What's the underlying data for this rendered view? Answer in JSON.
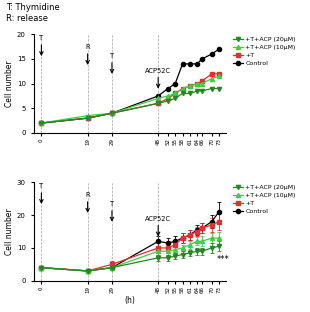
{
  "chart_data": [
    {
      "type": "line",
      "title": "T: Thymidine\nR: release",
      "x": [
        0,
        19,
        29,
        48,
        52,
        55,
        58,
        61,
        64,
        66,
        70,
        73
      ],
      "xlim": [
        -3,
        76
      ],
      "xticks": [
        0,
        19,
        29,
        48,
        52,
        55,
        58,
        61,
        64,
        66,
        70,
        73
      ],
      "ylim": [
        0,
        20
      ],
      "yticks": [
        0,
        5,
        10,
        15,
        20
      ],
      "ylabel": "Cell number",
      "legend": "upper left",
      "vlines": [
        0,
        19,
        29,
        48
      ],
      "annotations": [
        {
          "text": "T",
          "x": 0,
          "arrow": true
        },
        {
          "text": "R",
          "x": 19,
          "arrow": true
        },
        {
          "text": "T",
          "x": 29,
          "arrow": true
        },
        {
          "text": "ACP52C",
          "x": 48,
          "arrow": true
        }
      ],
      "series": [
        {
          "name": "+T+ACP (20μM)",
          "color": "#228822",
          "marker": "triangle_down",
          "values": [
            2,
            3,
            4,
            6,
            6.5,
            7,
            8,
            8,
            8.5,
            8.5,
            9,
            9
          ]
        },
        {
          "name": "+T+ACP (10μM)",
          "color": "#44cc44",
          "marker": "triangle_up",
          "values": [
            2,
            3.5,
            4,
            7,
            7.5,
            8,
            9,
            9.5,
            10,
            10,
            11,
            11.5
          ]
        },
        {
          "name": "+T",
          "color": "#e03030",
          "marker": "square",
          "values": [
            2,
            3,
            4,
            6,
            7,
            8,
            9,
            9.5,
            10,
            10.5,
            12,
            12
          ]
        },
        {
          "name": "Control",
          "color": "#000000",
          "marker": "circle",
          "values": [
            2,
            3,
            4,
            7.5,
            9,
            10,
            14,
            14,
            14,
            15,
            16,
            17
          ]
        }
      ]
    },
    {
      "type": "line",
      "x": [
        0,
        19,
        29,
        48,
        52,
        55,
        58,
        61,
        64,
        66,
        70,
        73
      ],
      "xlim": [
        -3,
        76
      ],
      "xticks": [
        0,
        19,
        29,
        48,
        52,
        55,
        58,
        61,
        64,
        66,
        70,
        73
      ],
      "ylim": [
        0,
        30
      ],
      "yticks": [
        0,
        10,
        20,
        30
      ],
      "xlabel": "(h)",
      "ylabel": "Cell number",
      "legend": "upper left",
      "vlines": [
        0,
        19,
        29,
        48
      ],
      "annotations": [
        {
          "text": "T",
          "x": 0,
          "arrow": true
        },
        {
          "text": "R",
          "x": 19,
          "arrow": true
        },
        {
          "text": "T",
          "x": 29,
          "arrow": true
        },
        {
          "text": "ACP52C",
          "x": 48,
          "arrow": true
        },
        {
          "text": "***",
          "x": 74.5,
          "arrow": false
        }
      ],
      "series": [
        {
          "name": "+T+ACP (20μM)",
          "color": "#228822",
          "marker": "triangle_down",
          "values": [
            4,
            3,
            4,
            7,
            7,
            7.5,
            8,
            8.5,
            9,
            9,
            10,
            10.5
          ],
          "errors": [
            0.5,
            0.5,
            0.5,
            1,
            1,
            1,
            1,
            1,
            1,
            1,
            1.5,
            1.5
          ]
        },
        {
          "name": "+T+ACP (10μM)",
          "color": "#44cc44",
          "marker": "triangle_up",
          "values": [
            4,
            3,
            4,
            9,
            9,
            9.5,
            10,
            11,
            12,
            12,
            13,
            13
          ],
          "errors": [
            0.5,
            0.5,
            0.5,
            1,
            1,
            1,
            1,
            1.2,
            1.2,
            1.5,
            1.5,
            2
          ]
        },
        {
          "name": "+T",
          "color": "#e03030",
          "marker": "square",
          "values": [
            4,
            3,
            5,
            10,
            10,
            11,
            13,
            14,
            15,
            16,
            17,
            18
          ],
          "errors": [
            0.5,
            0.5,
            1,
            1.5,
            1.5,
            1.5,
            1.5,
            1.5,
            1.5,
            1.5,
            2,
            2.5
          ]
        },
        {
          "name": "Control",
          "color": "#000000",
          "marker": "circle",
          "values": [
            4,
            3,
            4,
            12,
            11.5,
            12,
            13,
            14,
            15.5,
            16,
            18,
            21
          ],
          "errors": [
            0.5,
            0.5,
            0.5,
            1.5,
            1.5,
            1.5,
            1.5,
            1.5,
            1.5,
            1.5,
            2,
            3
          ]
        }
      ]
    }
  ]
}
